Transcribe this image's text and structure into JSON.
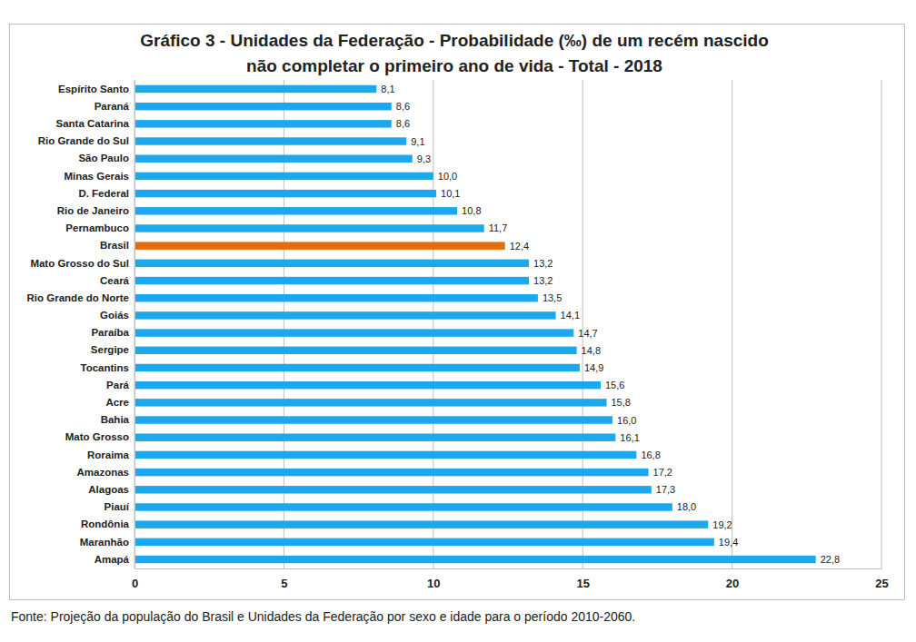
{
  "chart_data": {
    "type": "bar",
    "orientation": "horizontal",
    "title": [
      "Gráfico 3 - Unidades da Federação - Probabilidade (‰) de  um recém nascido",
      "não completar o primeiro ano de vida - Total - 2018"
    ],
    "source": "Fonte: Projeção da população do Brasil e Unidades da Federação por sexo e idade para o período 2010-2060.",
    "categories": [
      "Espírito Santo",
      "Paraná",
      "Santa Catarina",
      "Rio Grande do Sul",
      "São Paulo",
      "Minas Gerais",
      "D. Federal",
      "Rio de Janeiro",
      "Pernambuco",
      "Brasil",
      "Mato Grosso do Sul",
      "Ceará",
      "Rio Grande do Norte",
      "Goiás",
      "Paraíba",
      "Sergipe",
      "Tocantins",
      "Pará",
      "Acre",
      "Bahia",
      "Mato Grosso",
      "Roraima",
      "Amazonas",
      "Alagoas",
      "Piauí",
      "Rondônia",
      "Maranhão",
      "Amapá"
    ],
    "values": [
      8.1,
      8.6,
      8.6,
      9.1,
      9.3,
      10.0,
      10.1,
      10.8,
      11.7,
      12.4,
      13.2,
      13.2,
      13.5,
      14.1,
      14.7,
      14.8,
      14.9,
      15.6,
      15.8,
      16.0,
      16.1,
      16.8,
      17.2,
      17.3,
      18.0,
      19.2,
      19.4,
      22.8
    ],
    "value_labels": [
      "8,1",
      "8,6",
      "8,6",
      "9,1",
      "9,3",
      "10,0",
      "10,1",
      "10,8",
      "11,7",
      "12,4",
      "13,2",
      "13,2",
      "13,5",
      "14,1",
      "14,7",
      "14,8",
      "14,9",
      "15,6",
      "15,8",
      "16,0",
      "16,1",
      "16,8",
      "17,2",
      "17,3",
      "18,0",
      "19,2",
      "19,4",
      "22,8"
    ],
    "colors": [
      "#1ba8ec",
      "#1ba8ec",
      "#1ba8ec",
      "#1ba8ec",
      "#1ba8ec",
      "#1ba8ec",
      "#1ba8ec",
      "#1ba8ec",
      "#1ba8ec",
      "#e46c0a",
      "#1ba8ec",
      "#1ba8ec",
      "#1ba8ec",
      "#1ba8ec",
      "#1ba8ec",
      "#1ba8ec",
      "#1ba8ec",
      "#1ba8ec",
      "#1ba8ec",
      "#1ba8ec",
      "#1ba8ec",
      "#1ba8ec",
      "#1ba8ec",
      "#1ba8ec",
      "#1ba8ec",
      "#1ba8ec",
      "#1ba8ec",
      "#1ba8ec"
    ],
    "xlim": [
      0,
      25
    ],
    "xticks": [
      0,
      5,
      10,
      15,
      20,
      25
    ],
    "grid": true,
    "data_labels": true
  }
}
